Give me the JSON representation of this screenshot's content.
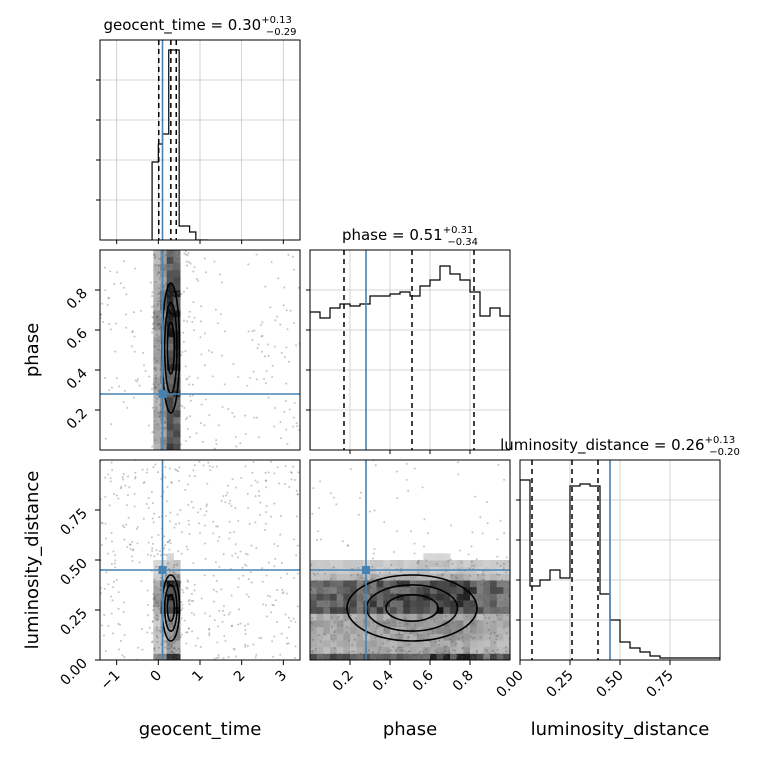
{
  "chart_data": {
    "type": "corner",
    "accent_color": "#4682b4",
    "parameters": [
      "geocent_time",
      "phase",
      "luminosity_distance"
    ],
    "truths": {
      "geocent_time": 0.1,
      "phase": 0.28,
      "luminosity_distance": 0.45
    },
    "titles": [
      {
        "parameter": "geocent_time",
        "label": "geocent_time = 0.30",
        "upper": "+0.13",
        "lower": "−0.29"
      },
      {
        "parameter": "phase",
        "label": "phase = 0.51",
        "upper": "+0.31",
        "lower": "−0.34"
      },
      {
        "parameter": "luminosity_distance",
        "label": "luminosity_distance = 0.26",
        "upper": "+0.13",
        "lower": "−0.20"
      }
    ],
    "axes": {
      "geocent_time": {
        "xlabel": "geocent_time",
        "range": [
          -1.4,
          3.4
        ],
        "ticks": [
          "−1",
          "0",
          "1",
          "2",
          "3"
        ],
        "tick_values": [
          -1,
          0,
          1,
          2,
          3
        ]
      },
      "phase": {
        "xlabel": "phase",
        "ylabel": "phase",
        "range": [
          0.0,
          1.0
        ],
        "ticks": [
          "0.2",
          "0.4",
          "0.6",
          "0.8"
        ],
        "tick_values": [
          0.2,
          0.4,
          0.6,
          0.8
        ]
      },
      "luminosity_distance": {
        "xlabel": "luminosity_distance",
        "ylabel": "luminosity_distance",
        "range": [
          0.0,
          1.0
        ],
        "ticks": [
          "0.00",
          "0.25",
          "0.50",
          "0.75"
        ],
        "tick_values": [
          0.0,
          0.25,
          0.5,
          0.75
        ]
      }
    },
    "quantiles": {
      "geocent_time": [
        0.01,
        0.3,
        0.43
      ],
      "phase": [
        0.17,
        0.51,
        0.82
      ],
      "luminosity_distance": [
        0.06,
        0.26,
        0.39
      ]
    },
    "histograms": {
      "geocent_time": {
        "bin_edges": [
          -0.15,
          0.0,
          0.1,
          0.25,
          0.35,
          0.5,
          0.6,
          0.75,
          0.9,
          1.2
        ],
        "counts": [
          0.39,
          0.48,
          0.53,
          0.95,
          0.95,
          0.07,
          0.07,
          0.04,
          0.0
        ],
        "ylim": [
          0,
          1.0
        ]
      },
      "phase": {
        "bin_edges": [
          0.0,
          0.05,
          0.1,
          0.15,
          0.2,
          0.25,
          0.3,
          0.35,
          0.4,
          0.45,
          0.5,
          0.55,
          0.6,
          0.65,
          0.7,
          0.75,
          0.8,
          0.85,
          0.9,
          0.95,
          1.0
        ],
        "counts": [
          0.69,
          0.66,
          0.71,
          0.73,
          0.72,
          0.73,
          0.77,
          0.77,
          0.78,
          0.79,
          0.77,
          0.82,
          0.85,
          0.92,
          0.88,
          0.85,
          0.79,
          0.67,
          0.71,
          0.67
        ],
        "ylim": [
          0,
          1.0
        ]
      },
      "luminosity_distance": {
        "bin_edges": [
          0.0,
          0.05,
          0.1,
          0.15,
          0.2,
          0.25,
          0.3,
          0.35,
          0.4,
          0.45,
          0.5,
          0.55,
          0.6,
          0.65,
          0.7,
          0.75,
          0.8,
          0.85,
          0.9,
          0.95,
          1.0
        ],
        "counts": [
          0.9,
          0.37,
          0.4,
          0.45,
          0.41,
          0.87,
          0.88,
          0.87,
          0.33,
          0.2,
          0.09,
          0.06,
          0.04,
          0.02,
          0.01,
          0.01,
          0.01,
          0.01,
          0.01,
          0.01
        ],
        "ylim": [
          0,
          1.0
        ]
      }
    },
    "grid": true
  }
}
